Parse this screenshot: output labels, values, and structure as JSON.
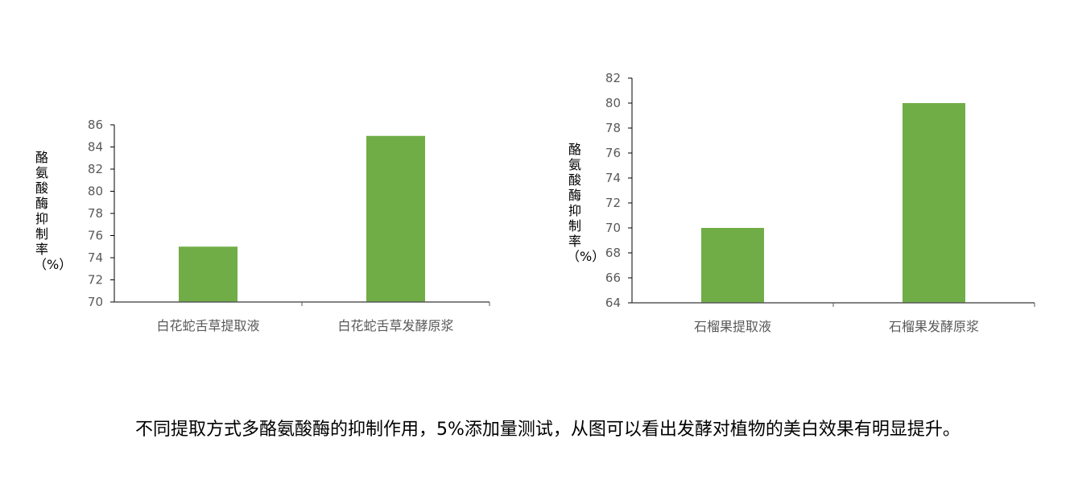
{
  "chart_data": [
    {
      "type": "bar",
      "ylabel": "酪氨酸酶抑制率（%）",
      "categories": [
        "白花蛇舌草提取液",
        "白花蛇舌草发酵原浆"
      ],
      "values": [
        75,
        85
      ],
      "ylim": [
        70,
        86
      ],
      "yticks": [
        70,
        72,
        74,
        76,
        78,
        80,
        82,
        84,
        86
      ],
      "grid": false,
      "color": "#70AD47"
    },
    {
      "type": "bar",
      "ylabel": "酪氨酸酶抑制率（%）",
      "categories": [
        "石榴果提取液",
        "石榴果发酵原浆"
      ],
      "values": [
        70,
        80
      ],
      "ylim": [
        64,
        82
      ],
      "yticks": [
        64,
        66,
        68,
        70,
        72,
        74,
        76,
        78,
        80,
        82
      ],
      "grid": false,
      "color": "#70AD47"
    }
  ],
  "paragraph": "不同提取方式多酪氨酸酶的抑制作用，5%添加量测试，从图可以看出发酵对植物的美白效果有明显提升。"
}
